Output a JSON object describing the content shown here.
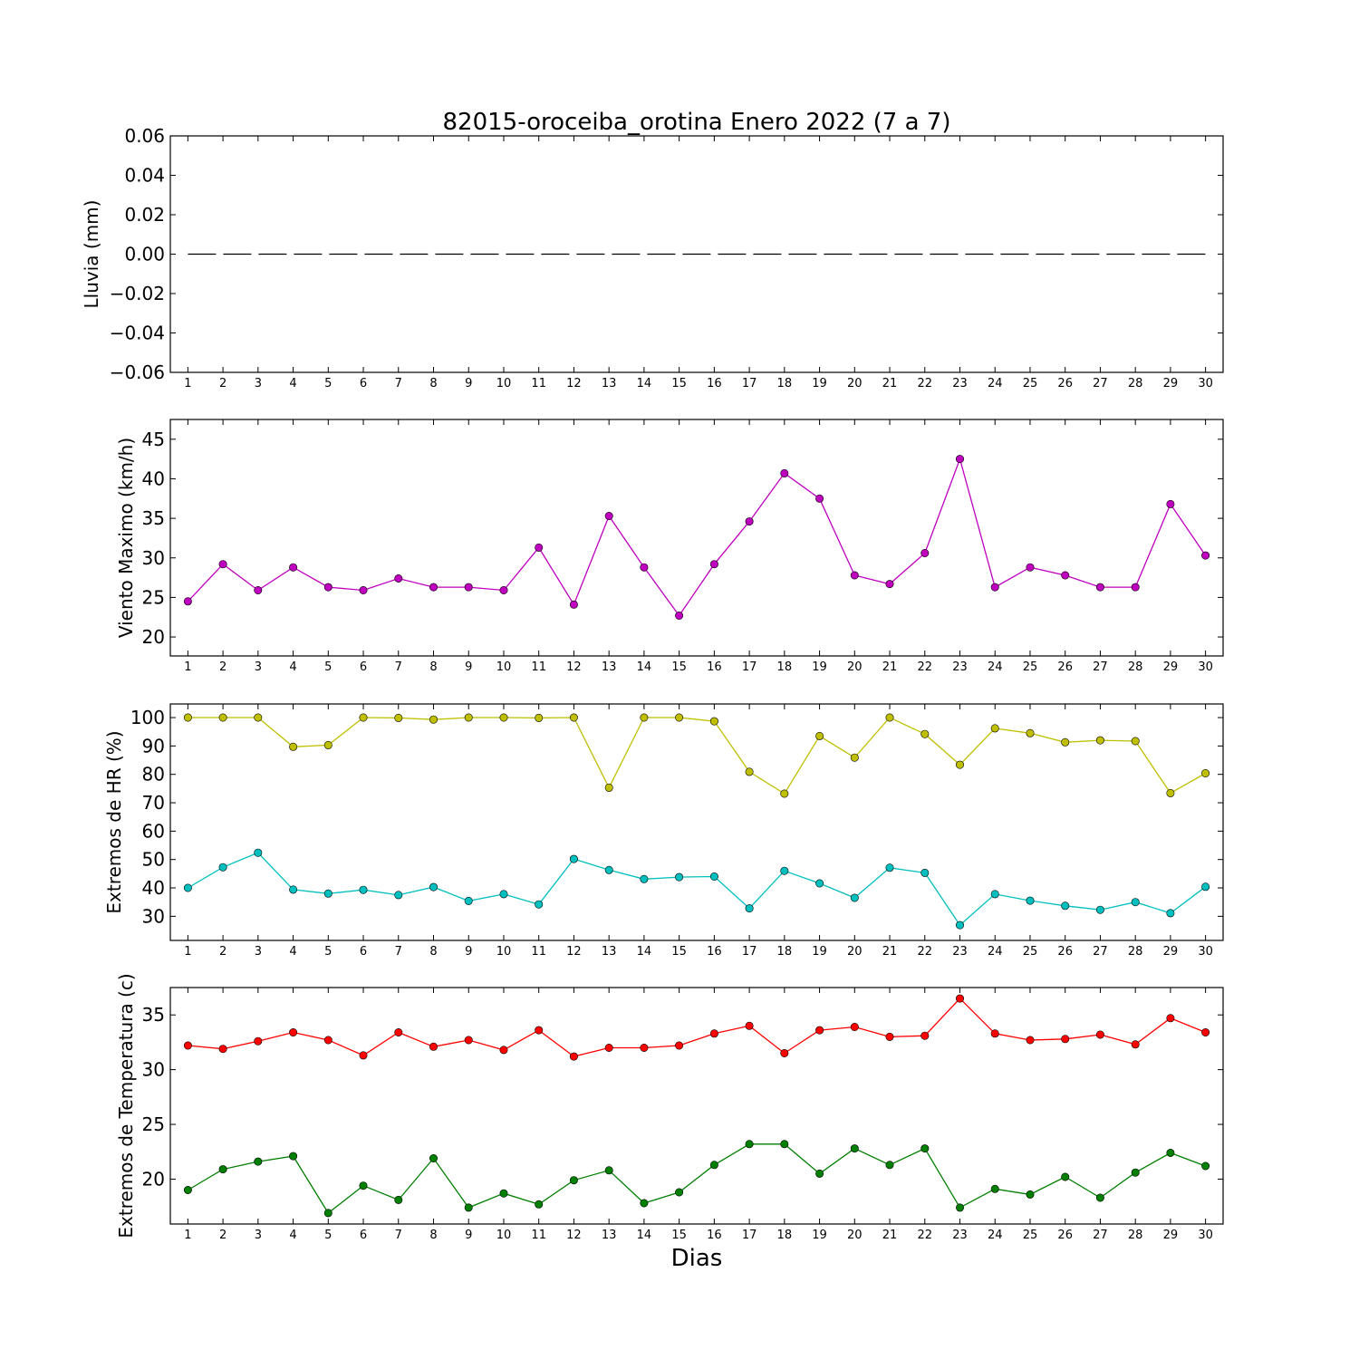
{
  "title": "82015-oroceiba_orotina Enero 2022  (7 a 7)",
  "xlabel": "Dias",
  "chart_data": [
    {
      "type": "line",
      "ylabel": "Lluvia (mm)",
      "x": [
        1,
        2,
        3,
        4,
        5,
        6,
        7,
        8,
        9,
        10,
        11,
        12,
        13,
        14,
        15,
        16,
        17,
        18,
        19,
        20,
        21,
        22,
        23,
        24,
        25,
        26,
        27,
        28,
        29,
        30
      ],
      "xlim": [
        0.5,
        30.5
      ],
      "ylim": [
        -0.06,
        0.06
      ],
      "yticks": [
        0.06,
        0.04,
        0.02,
        0.0,
        -0.02,
        -0.04,
        -0.06
      ],
      "ytick_labels": [
        "0.06",
        "0.04",
        "0.02",
        "0.00",
        "−0.02",
        "−0.04",
        "−0.06"
      ],
      "series": [
        {
          "color": "#000000",
          "dashed": true,
          "marker": false,
          "values": [
            0,
            0,
            0,
            0,
            0,
            0,
            0,
            0,
            0,
            0,
            0,
            0,
            0,
            0,
            0,
            0,
            0,
            0,
            0,
            0,
            0,
            0,
            0,
            0,
            0,
            0,
            0,
            0,
            0,
            0
          ]
        }
      ]
    },
    {
      "type": "line",
      "ylabel": "Viento Maximo (km/h)",
      "x": [
        1,
        2,
        3,
        4,
        5,
        6,
        7,
        8,
        9,
        10,
        11,
        12,
        13,
        14,
        15,
        16,
        17,
        18,
        19,
        20,
        21,
        22,
        23,
        24,
        25,
        26,
        27,
        28,
        29,
        30
      ],
      "xlim": [
        0.5,
        30.5
      ],
      "ylim": [
        17.6,
        47.5
      ],
      "yticks": [
        20,
        25,
        30,
        35,
        40,
        45
      ],
      "ytick_labels": [
        "20",
        "25",
        "30",
        "35",
        "40",
        "45"
      ],
      "series": [
        {
          "color": "#bf00bf",
          "marker": true,
          "values": [
            24.5,
            29.2,
            25.9,
            28.8,
            26.3,
            25.9,
            27.4,
            26.3,
            26.3,
            25.9,
            31.3,
            24.1,
            35.3,
            28.8,
            22.7,
            29.2,
            34.6,
            40.7,
            37.5,
            27.8,
            26.7,
            30.6,
            42.5,
            26.3,
            28.8,
            27.8,
            26.3,
            26.3,
            36.8,
            30.3
          ]
        }
      ]
    },
    {
      "type": "line",
      "ylabel": "Extremos de HR (%)",
      "x": [
        1,
        2,
        3,
        4,
        5,
        6,
        7,
        8,
        9,
        10,
        11,
        12,
        13,
        14,
        15,
        16,
        17,
        18,
        19,
        20,
        21,
        22,
        23,
        24,
        25,
        26,
        27,
        28,
        29,
        30
      ],
      "xlim": [
        0.5,
        30.5
      ],
      "ylim": [
        21.5,
        104.8
      ],
      "yticks": [
        30,
        40,
        50,
        60,
        70,
        80,
        90,
        100
      ],
      "ytick_labels": [
        "30",
        "40",
        "50",
        "60",
        "70",
        "80",
        "90",
        "100"
      ],
      "series": [
        {
          "color": "#bfbf00",
          "marker": true,
          "values": [
            100,
            100,
            100,
            89.7,
            90.3,
            100,
            99.9,
            99.3,
            100,
            100,
            99.9,
            100,
            75.3,
            100,
            100,
            98.7,
            80.9,
            73.2,
            93.5,
            85.9,
            100,
            94.2,
            83.4,
            96.2,
            94.5,
            91.3,
            92,
            91.7,
            73.4,
            80.4
          ]
        },
        {
          "color": "#00bfbf",
          "marker": true,
          "values": [
            40,
            47.3,
            52.4,
            39.4,
            38,
            39.3,
            37.5,
            40.3,
            35.4,
            37.8,
            34.2,
            50.2,
            46.3,
            43.1,
            43.8,
            44,
            32.8,
            46,
            41.6,
            36.5,
            47.1,
            45.3,
            26.9,
            37.8,
            35.5,
            33.7,
            32.3,
            35,
            31.1,
            40.4
          ]
        }
      ]
    },
    {
      "type": "line",
      "ylabel": "Extremos de Temperatura (c)",
      "x": [
        1,
        2,
        3,
        4,
        5,
        6,
        7,
        8,
        9,
        10,
        11,
        12,
        13,
        14,
        15,
        16,
        17,
        18,
        19,
        20,
        21,
        22,
        23,
        24,
        25,
        26,
        27,
        28,
        29,
        30
      ],
      "xlim": [
        0.5,
        30.5
      ],
      "ylim": [
        15.9,
        37.5
      ],
      "yticks": [
        20,
        25,
        30,
        35
      ],
      "ytick_labels": [
        "20",
        "25",
        "30",
        "35"
      ],
      "series": [
        {
          "color": "#ff0000",
          "marker": true,
          "values": [
            32.2,
            31.9,
            32.6,
            33.4,
            32.7,
            31.3,
            33.4,
            32.1,
            32.7,
            31.8,
            33.6,
            31.2,
            32,
            32,
            32.2,
            33.3,
            34,
            31.5,
            33.6,
            33.9,
            33,
            33.1,
            36.5,
            33.3,
            32.7,
            32.8,
            33.2,
            32.3,
            34.7,
            33.4
          ]
        },
        {
          "color": "#007f00",
          "marker": true,
          "values": [
            19,
            20.9,
            21.6,
            22.1,
            16.9,
            19.4,
            18.1,
            21.9,
            17.4,
            18.7,
            17.7,
            19.9,
            20.8,
            17.8,
            18.8,
            21.3,
            23.2,
            23.2,
            20.5,
            22.8,
            21.3,
            22.8,
            17.4,
            19.1,
            18.6,
            20.2,
            18.3,
            20.6,
            22.4,
            21.2
          ]
        }
      ]
    }
  ]
}
